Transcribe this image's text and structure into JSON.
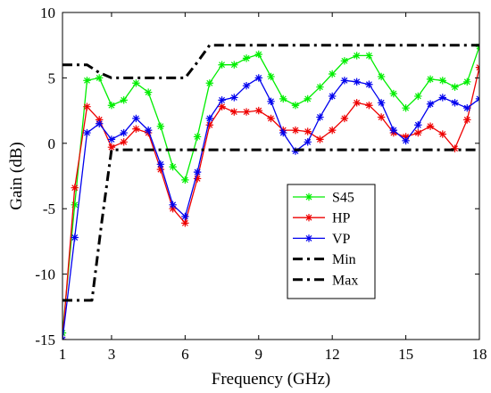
{
  "chart_data": {
    "type": "line",
    "xlabel": "Frequency (GHz)",
    "ylabel": "Gain (dB)",
    "xlim": [
      1,
      18
    ],
    "ylim": [
      -15,
      10
    ],
    "xticks": [
      1,
      3,
      6,
      9,
      12,
      15,
      18
    ],
    "yticks": [
      -15,
      -10,
      -5,
      0,
      5,
      10
    ],
    "grid": false,
    "legend_position": "center-right",
    "series": [
      {
        "name": "S45",
        "color": "#00ee00",
        "marker": "star",
        "style": "solid",
        "x": [
          1,
          1.5,
          2,
          2.5,
          3,
          3.5,
          4,
          4.5,
          5,
          5.5,
          6,
          6.5,
          7,
          7.5,
          8,
          8.5,
          9,
          9.5,
          10,
          10.5,
          11,
          11.5,
          12,
          12.5,
          13,
          13.5,
          14,
          14.5,
          15,
          15.5,
          16,
          16.5,
          17,
          17.5,
          18
        ],
        "y": [
          -14.5,
          -4.7,
          4.8,
          5.0,
          2.9,
          3.3,
          4.6,
          3.9,
          1.3,
          -1.8,
          -2.8,
          0.5,
          4.6,
          6.0,
          6.0,
          6.5,
          6.8,
          5.1,
          3.4,
          2.9,
          3.4,
          4.3,
          5.3,
          6.3,
          6.7,
          6.7,
          5.1,
          3.8,
          2.7,
          3.6,
          4.9,
          4.8,
          4.3,
          4.7,
          7.4
        ]
      },
      {
        "name": "HP",
        "color": "#ee0000",
        "marker": "star",
        "style": "solid",
        "x": [
          1,
          1.5,
          2,
          2.5,
          3,
          3.5,
          4,
          4.5,
          5,
          5.5,
          6,
          6.5,
          7,
          7.5,
          8,
          8.5,
          9,
          9.5,
          10,
          10.5,
          11,
          11.5,
          12,
          12.5,
          13,
          13.5,
          14,
          14.5,
          15,
          15.5,
          16,
          16.5,
          17,
          17.5,
          18
        ],
        "y": [
          -15,
          -3.4,
          2.8,
          1.8,
          -0.3,
          0.1,
          1.1,
          0.8,
          -2.0,
          -5.0,
          -6.1,
          -2.7,
          1.4,
          2.8,
          2.4,
          2.4,
          2.5,
          1.9,
          1.0,
          1.0,
          0.9,
          0.3,
          1.0,
          1.9,
          3.1,
          2.9,
          2.0,
          0.8,
          0.5,
          0.8,
          1.3,
          0.7,
          -0.4,
          1.8,
          5.8
        ]
      },
      {
        "name": "VP",
        "color": "#0000ee",
        "marker": "star",
        "style": "solid",
        "x": [
          1,
          1.5,
          2,
          2.5,
          3,
          3.5,
          4,
          4.5,
          5,
          5.5,
          6,
          6.5,
          7,
          7.5,
          8,
          8.5,
          9,
          9.5,
          10,
          10.5,
          11,
          11.5,
          12,
          12.5,
          13,
          13.5,
          14,
          14.5,
          15,
          15.5,
          16,
          16.5,
          17,
          17.5,
          18
        ],
        "y": [
          -15,
          -7.2,
          0.8,
          1.5,
          0.3,
          0.8,
          1.9,
          1.0,
          -1.6,
          -4.7,
          -5.6,
          -2.2,
          1.9,
          3.3,
          3.5,
          4.4,
          5.0,
          3.2,
          0.8,
          -0.6,
          0.1,
          2.0,
          3.6,
          4.8,
          4.7,
          4.5,
          3.1,
          1.0,
          0.2,
          1.4,
          3.0,
          3.5,
          3.1,
          2.7,
          3.4
        ]
      },
      {
        "name": "Min",
        "color": "#000000",
        "marker": "none",
        "style": "dashdot",
        "x": [
          1,
          1.5,
          2.2,
          2.6,
          3,
          3.5,
          4,
          5,
          6,
          6.5,
          7,
          9,
          12,
          15,
          18
        ],
        "y": [
          -12,
          -12,
          -12,
          -6,
          -0.5,
          -0.5,
          -0.5,
          -0.5,
          -0.5,
          -0.5,
          -0.5,
          -0.5,
          -0.5,
          -0.5,
          -0.5
        ]
      },
      {
        "name": "Max",
        "color": "#000000",
        "marker": "none",
        "style": "dashdot",
        "x": [
          1,
          2,
          2.5,
          3,
          4,
          5,
          6,
          6.5,
          7,
          9,
          12,
          15,
          18
        ],
        "y": [
          6,
          6,
          5.4,
          5,
          5,
          5,
          5,
          6.2,
          7.5,
          7.5,
          7.5,
          7.5,
          7.5
        ]
      }
    ]
  }
}
